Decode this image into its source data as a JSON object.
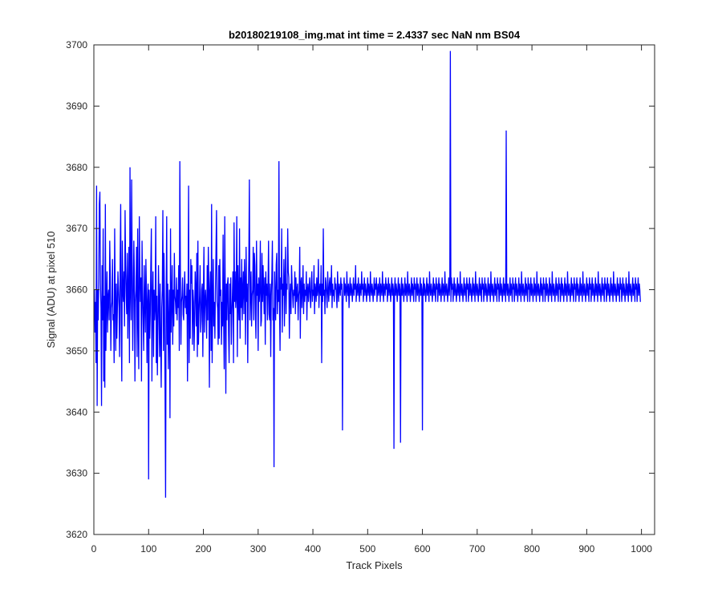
{
  "chart_data": {
    "type": "line",
    "title": "b20180219108_img.mat int time = 2.4337 sec  NaN nm BS04",
    "xlabel": "Track Pixels",
    "ylabel": "Signal (ADU) at pixel 510",
    "xlim": [
      0,
      1024
    ],
    "ylim": [
      3620,
      3700
    ],
    "xticks": [
      0,
      100,
      200,
      300,
      400,
      500,
      600,
      700,
      800,
      900,
      1000
    ],
    "yticks": [
      3620,
      3630,
      3640,
      3650,
      3660,
      3670,
      3680,
      3690,
      3700
    ],
    "xtick_labels": [
      "0",
      "100",
      "200",
      "300",
      "400",
      "500",
      "600",
      "700",
      "800",
      "900",
      "1000"
    ],
    "ytick_labels": [
      "3620",
      "3630",
      "3640",
      "3650",
      "3660",
      "3670",
      "3680",
      "3690",
      "3700"
    ],
    "grid": false,
    "line_color": "#0000ff",
    "series": [
      {
        "x_start": 1,
        "x_step": 1,
        "values": [
          3660,
          3653,
          3658,
          3648,
          3677,
          3641,
          3660,
          3655,
          3662,
          3674,
          3676,
          3661,
          3657,
          3641,
          3664,
          3655,
          3670,
          3645,
          3659,
          3644,
          3674,
          3650,
          3658,
          3663,
          3653,
          3659,
          3660,
          3655,
          3668,
          3662,
          3650,
          3657,
          3658,
          3665,
          3655,
          3656,
          3648,
          3670,
          3659,
          3650,
          3661,
          3652,
          3657,
          3663,
          3660,
          3657,
          3649,
          3665,
          3674,
          3655,
          3645,
          3668,
          3660,
          3658,
          3663,
          3654,
          3673,
          3664,
          3659,
          3656,
          3666,
          3652,
          3660,
          3667,
          3648,
          3680,
          3660,
          3655,
          3678,
          3664,
          3650,
          3658,
          3668,
          3662,
          3645,
          3658,
          3660,
          3667,
          3649,
          3670,
          3655,
          3647,
          3672,
          3662,
          3658,
          3662,
          3645,
          3668,
          3660,
          3655,
          3650,
          3664,
          3658,
          3653,
          3665,
          3660,
          3648,
          3658,
          3661,
          3629,
          3660,
          3652,
          3656,
          3664,
          3670,
          3645,
          3658,
          3663,
          3649,
          3660,
          3655,
          3657,
          3672,
          3648,
          3659,
          3646,
          3654,
          3664,
          3658,
          3649,
          3661,
          3652,
          3644,
          3657,
          3660,
          3673,
          3650,
          3666,
          3658,
          3644,
          3626,
          3658,
          3672,
          3651,
          3661,
          3647,
          3655,
          3660,
          3639,
          3670,
          3653,
          3658,
          3664,
          3651,
          3660,
          3654,
          3666,
          3659,
          3658,
          3656,
          3662,
          3655,
          3660,
          3657,
          3664,
          3650,
          3681,
          3664,
          3651,
          3658,
          3659,
          3662,
          3656,
          3655,
          3660,
          3663,
          3657,
          3659,
          3656,
          3661,
          3645,
          3658,
          3677,
          3648,
          3660,
          3652,
          3665,
          3661,
          3664,
          3651,
          3660,
          3658,
          3650,
          3655,
          3663,
          3660,
          3654,
          3666,
          3649,
          3668,
          3651,
          3656,
          3659,
          3664,
          3653,
          3655,
          3660,
          3661,
          3649,
          3659,
          3667,
          3653,
          3658,
          3660,
          3657,
          3652,
          3664,
          3655,
          3667,
          3661,
          3644,
          3660,
          3663,
          3650,
          3674,
          3648,
          3657,
          3665,
          3654,
          3658,
          3652,
          3660,
          3666,
          3673,
          3658,
          3657,
          3651,
          3664,
          3652,
          3665,
          3659,
          3660,
          3651,
          3658,
          3654,
          3669,
          3655,
          3647,
          3672,
          3659,
          3643,
          3661,
          3655,
          3661,
          3662,
          3653,
          3648,
          3661,
          3656,
          3662,
          3651,
          3656,
          3659,
          3663,
          3648,
          3671,
          3658,
          3663,
          3657,
          3659,
          3672,
          3649,
          3664,
          3658,
          3655,
          3670,
          3652,
          3662,
          3657,
          3665,
          3655,
          3660,
          3663,
          3656,
          3665,
          3661,
          3651,
          3667,
          3658,
          3661,
          3648,
          3660,
          3665,
          3678,
          3655,
          3660,
          3663,
          3654,
          3659,
          3660,
          3667,
          3655,
          3666,
          3664,
          3656,
          3652,
          3668,
          3659,
          3661,
          3650,
          3662,
          3658,
          3660,
          3668,
          3654,
          3655,
          3666,
          3658,
          3664,
          3660,
          3656,
          3662,
          3651,
          3663,
          3659,
          3661,
          3655,
          3660,
          3668,
          3656,
          3655,
          3661,
          3649,
          3659,
          3662,
          3668,
          3655,
          3657,
          3631,
          3663,
          3659,
          3655,
          3664,
          3666,
          3656,
          3660,
          3658,
          3681,
          3657,
          3650,
          3662,
          3660,
          3670,
          3653,
          3661,
          3659,
          3665,
          3654,
          3661,
          3667,
          3656,
          3661,
          3660,
          3670,
          3663,
          3662,
          3652,
          3659,
          3661,
          3656,
          3664,
          3661,
          3659,
          3657,
          3660,
          3659,
          3663,
          3656,
          3662,
          3658,
          3660,
          3661,
          3655,
          3659,
          3660,
          3667,
          3652,
          3661,
          3662,
          3657,
          3660,
          3664,
          3656,
          3661,
          3658,
          3660,
          3659,
          3663,
          3655,
          3660,
          3661,
          3658,
          3660,
          3662,
          3659,
          3657,
          3661,
          3663,
          3658,
          3660,
          3659,
          3664,
          3656,
          3661,
          3660,
          3658,
          3662,
          3659,
          3660,
          3665,
          3657,
          3660,
          3661,
          3659,
          3664,
          3648,
          3661,
          3658,
          3670,
          3659,
          3660,
          3656,
          3662,
          3661,
          3659,
          3657,
          3663,
          3660,
          3658,
          3661,
          3662,
          3659,
          3660,
          3664,
          3657,
          3661,
          3659,
          3660,
          3658,
          3662,
          3660,
          3661,
          3659,
          3657,
          3663,
          3660,
          3658,
          3661,
          3660,
          3659,
          3662,
          3660,
          3661,
          3637,
          3658,
          3660,
          3662,
          3659,
          3661,
          3660,
          3658,
          3663,
          3660,
          3659,
          3661,
          3657,
          3660,
          3662,
          3659,
          3661,
          3660,
          3658,
          3660,
          3662,
          3659,
          3661,
          3660,
          3664,
          3658,
          3660,
          3661,
          3659,
          3662,
          3660,
          3658,
          3661,
          3660,
          3659,
          3663,
          3660,
          3661,
          3658,
          3660,
          3662,
          3659,
          3661,
          3660,
          3658,
          3660,
          3662,
          3659,
          3661,
          3660,
          3658,
          3663,
          3660,
          3659,
          3661,
          3660,
          3658,
          3660,
          3662,
          3659,
          3661,
          3660,
          3662,
          3658,
          3660,
          3661,
          3659,
          3660,
          3662,
          3658,
          3661,
          3660,
          3659,
          3663,
          3660,
          3658,
          3661,
          3660,
          3659,
          3662,
          3660,
          3661,
          3658,
          3660,
          3662,
          3659,
          3661,
          3660,
          3658,
          3660,
          3662,
          3659,
          3661,
          3660,
          3634,
          3660,
          3662,
          3659,
          3661,
          3660,
          3658,
          3660,
          3662,
          3659,
          3661,
          3660,
          3635,
          3660,
          3662,
          3659,
          3661,
          3660,
          3658,
          3660,
          3662,
          3659,
          3661,
          3660,
          3658,
          3663,
          3660,
          3659,
          3661,
          3660,
          3658,
          3660,
          3662,
          3659,
          3661,
          3660,
          3658,
          3662,
          3660,
          3661,
          3658,
          3660,
          3662,
          3659,
          3661,
          3660,
          3658,
          3660,
          3662,
          3659,
          3661,
          3660,
          3637,
          3660,
          3662,
          3659,
          3661,
          3660,
          3658,
          3660,
          3662,
          3659,
          3661,
          3660,
          3658,
          3663,
          3660,
          3659,
          3661,
          3660,
          3658,
          3660,
          3662,
          3659,
          3661,
          3660,
          3658,
          3662,
          3660,
          3661,
          3658,
          3660,
          3662,
          3659,
          3661,
          3660,
          3658,
          3660,
          3662,
          3659,
          3661,
          3660,
          3658,
          3663,
          3660,
          3659,
          3661,
          3660,
          3658,
          3660,
          3662,
          3659,
          3661,
          3699,
          3658,
          3662,
          3660,
          3661,
          3658,
          3660,
          3662,
          3659,
          3661,
          3660,
          3658,
          3660,
          3662,
          3659,
          3661,
          3660,
          3658,
          3663,
          3660,
          3659,
          3661,
          3660,
          3658,
          3660,
          3662,
          3659,
          3661,
          3660,
          3658,
          3662,
          3660,
          3661,
          3658,
          3660,
          3662,
          3659,
          3661,
          3660,
          3658,
          3660,
          3662,
          3659,
          3661,
          3660,
          3658,
          3663,
          3660,
          3659,
          3661,
          3660,
          3658,
          3660,
          3662,
          3659,
          3661,
          3660,
          3658,
          3662,
          3660,
          3661,
          3658,
          3660,
          3662,
          3659,
          3661,
          3660,
          3658,
          3660,
          3662,
          3659,
          3661,
          3660,
          3658,
          3663,
          3660,
          3659,
          3661,
          3660,
          3658,
          3660,
          3662,
          3659,
          3661,
          3660,
          3658,
          3662,
          3660,
          3661,
          3658,
          3660,
          3662,
          3659,
          3661,
          3660,
          3658,
          3660,
          3662,
          3659,
          3661,
          3660,
          3658,
          3686,
          3660,
          3659,
          3661,
          3660,
          3658,
          3660,
          3662,
          3659,
          3661,
          3660,
          3658,
          3662,
          3660,
          3661,
          3658,
          3660,
          3662,
          3659,
          3661,
          3660,
          3658,
          3660,
          3662,
          3659,
          3661,
          3660,
          3658,
          3663,
          3660,
          3659,
          3661,
          3660,
          3658,
          3660,
          3662,
          3659,
          3661,
          3660,
          3658,
          3662,
          3660,
          3661,
          3658,
          3660,
          3662,
          3659,
          3661,
          3660,
          3658,
          3660,
          3662,
          3659,
          3661,
          3660,
          3658,
          3663,
          3660,
          3659,
          3661,
          3660,
          3658,
          3660,
          3662,
          3659,
          3661,
          3660,
          3658,
          3662,
          3660,
          3661,
          3658,
          3660,
          3662,
          3659,
          3661,
          3660,
          3658,
          3660,
          3662,
          3659,
          3661,
          3660,
          3658,
          3663,
          3660,
          3659,
          3661,
          3660,
          3658,
          3660,
          3662,
          3659,
          3661,
          3660,
          3658,
          3662,
          3660,
          3661,
          3658,
          3660,
          3662,
          3659,
          3661,
          3660,
          3658,
          3660,
          3662,
          3659,
          3661,
          3660,
          3658,
          3663,
          3660,
          3659,
          3661,
          3660,
          3658,
          3660,
          3662,
          3659,
          3661,
          3660,
          3658,
          3662,
          3660,
          3661,
          3658,
          3660,
          3662,
          3659,
          3661,
          3660,
          3658,
          3660,
          3662,
          3659,
          3661,
          3660,
          3658,
          3663,
          3660,
          3659,
          3661,
          3660,
          3658,
          3660,
          3662,
          3659,
          3661,
          3660,
          3658,
          3662,
          3660,
          3661,
          3658,
          3660,
          3662,
          3659,
          3661,
          3660,
          3658,
          3660,
          3662,
          3659,
          3661,
          3660,
          3658,
          3663,
          3660,
          3659,
          3661,
          3660,
          3658,
          3660,
          3662,
          3659,
          3661,
          3660,
          3658,
          3662,
          3660,
          3661,
          3658,
          3660,
          3662,
          3659,
          3661,
          3660,
          3658,
          3660,
          3662,
          3659,
          3661,
          3660,
          3658,
          3663,
          3660,
          3659,
          3661,
          3660,
          3658,
          3660,
          3662,
          3659,
          3661,
          3660,
          3658,
          3662,
          3660,
          3661,
          3658,
          3660,
          3662,
          3659,
          3661,
          3660,
          3658,
          3660,
          3662,
          3659,
          3661,
          3660,
          3658,
          3663,
          3660,
          3659,
          3661,
          3660,
          3658,
          3660,
          3662,
          3659,
          3661,
          3660,
          3658,
          3662,
          3660,
          3661,
          3658,
          3660,
          3662,
          3659,
          3661,
          3660,
          3658
        ]
      }
    ]
  }
}
